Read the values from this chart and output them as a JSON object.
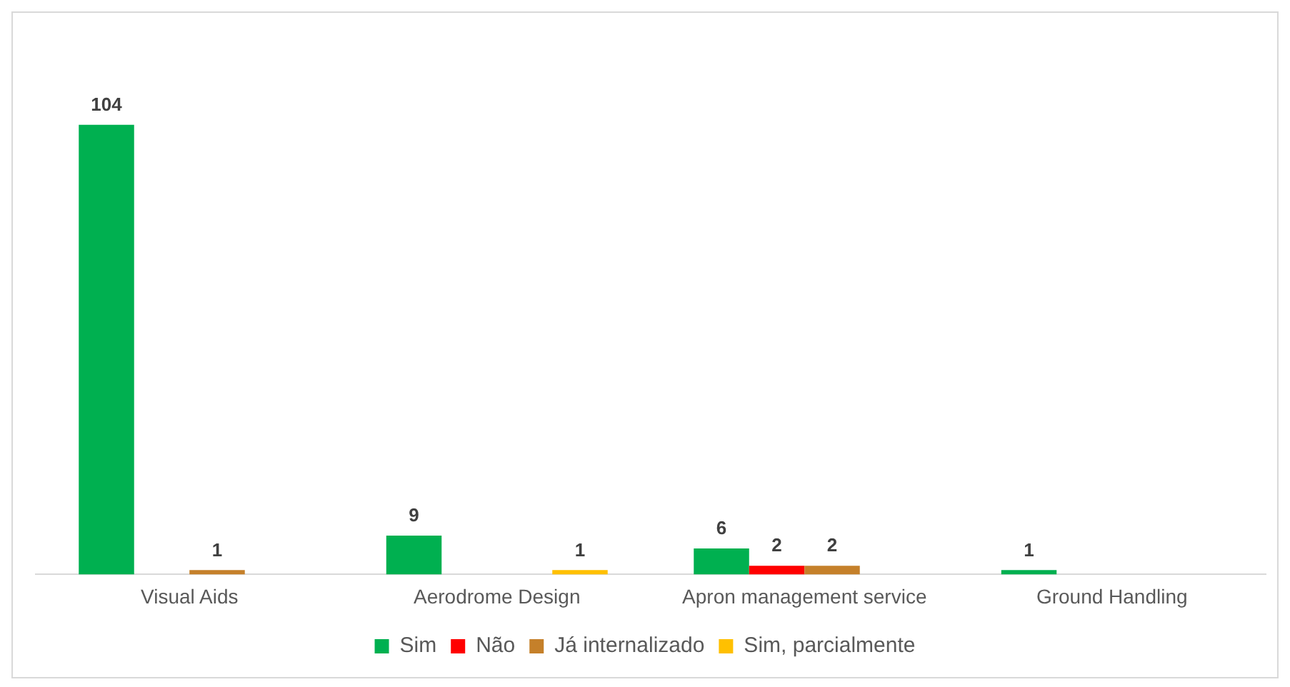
{
  "chart_data": {
    "type": "bar",
    "categories": [
      "Visual Aids",
      "Aerodrome Design",
      "Apron management service",
      "Ground Handling"
    ],
    "series": [
      {
        "name": "Sim",
        "color": "#00b050",
        "values": [
          104,
          9,
          6,
          1
        ]
      },
      {
        "name": "Não",
        "color": "#ff0000",
        "values": [
          null,
          null,
          2,
          null
        ]
      },
      {
        "name": "Já internalizado",
        "color": "#c5802a",
        "values": [
          1,
          null,
          2,
          null
        ]
      },
      {
        "name": "Sim, parcialmente",
        "color": "#ffc000",
        "values": [
          null,
          1,
          null,
          null
        ]
      }
    ],
    "data_labels": true,
    "legend": "bottom",
    "grid": false,
    "tick_labels": "x"
  }
}
